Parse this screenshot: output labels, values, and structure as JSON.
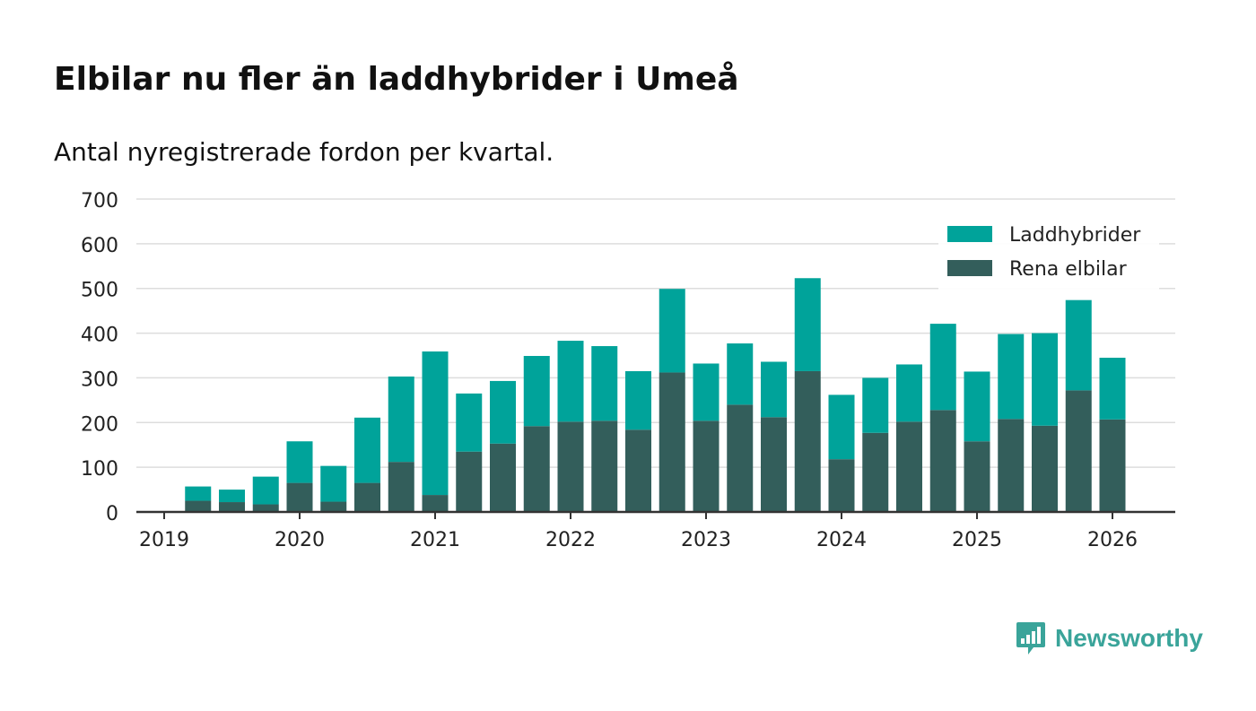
{
  "header": {
    "title": "Elbilar nu fler än laddhybrider i Umeå",
    "subtitle": "Antal nyregistrerade fordon per kvartal."
  },
  "brand": {
    "name": "Newsworthy",
    "icon": "newsworthy-logo-icon"
  },
  "colors": {
    "bev": "#335e5b",
    "phev": "#00a39a",
    "grid": "#dddddd",
    "axis": "#333333",
    "text": "#222222",
    "brand": "#3aa49a"
  },
  "chart_data": {
    "type": "bar",
    "stacked": true,
    "title": "Elbilar nu fler än laddhybrider i Umeå",
    "subtitle": "Antal nyregistrerade fordon per kvartal.",
    "xlabel": "",
    "ylabel": "",
    "ylim": [
      0,
      700
    ],
    "yticks": [
      0,
      100,
      200,
      300,
      400,
      500,
      600,
      700
    ],
    "grid": true,
    "legend_position": "top-right",
    "x_ticks": [
      "2019",
      "2020",
      "2021",
      "2022",
      "2023",
      "2024",
      "2025",
      "2026"
    ],
    "categories": [
      "2019 Q2",
      "2019 Q3",
      "2019 Q4",
      "2020 Q1",
      "2020 Q2",
      "2020 Q3",
      "2020 Q4",
      "2021 Q1",
      "2021 Q2",
      "2021 Q3",
      "2021 Q4",
      "2022 Q1",
      "2022 Q2",
      "2022 Q3",
      "2022 Q4",
      "2023 Q1",
      "2023 Q2",
      "2023 Q3",
      "2023 Q4",
      "2024 Q1",
      "2024 Q2",
      "2024 Q3",
      "2024 Q4",
      "2025 Q1",
      "2025 Q2",
      "2025 Q3",
      "2025 Q4",
      "2026 Q1"
    ],
    "series": [
      {
        "name": "Rena elbilar",
        "values": [
          25,
          22,
          17,
          65,
          23,
          65,
          112,
          38,
          135,
          153,
          192,
          202,
          204,
          184,
          312,
          204,
          240,
          212,
          315,
          118,
          177,
          202,
          228,
          158,
          208,
          193,
          272,
          207
        ]
      },
      {
        "name": "Laddhybrider",
        "values": [
          32,
          28,
          62,
          93,
          80,
          146,
          191,
          321,
          130,
          140,
          157,
          181,
          167,
          131,
          187,
          128,
          137,
          124,
          208,
          144,
          123,
          128,
          193,
          156,
          190,
          207,
          202,
          138
        ]
      }
    ],
    "legend": [
      "Laddhybrider",
      "Rena elbilar"
    ]
  }
}
